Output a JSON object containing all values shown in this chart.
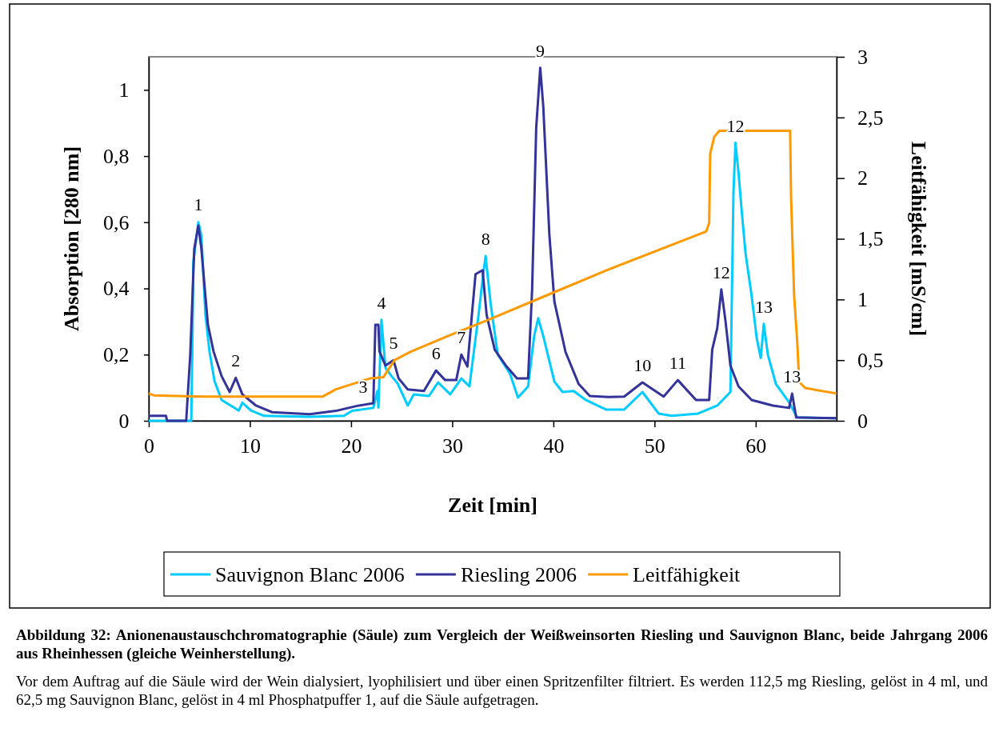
{
  "chart_data": {
    "type": "line",
    "title": "Abbildung 32: Anionenaustauschchromatographie (Säule) zum Vergleich der Weißweinsorten Riesling und Sauvignon Blanc, beide Jahrgang 2006 aus Rheinhessen (gleiche Weinherstellung).",
    "xlabel": "Zeit [min]",
    "ylabel": "Absorption [280 nm]",
    "y2label": "Leitfähigkeit [mS/cm]",
    "xlim": [
      0,
      68
    ],
    "xticks": [
      0,
      10,
      20,
      30,
      40,
      50,
      60
    ],
    "ylim": [
      0,
      1.1
    ],
    "yticks": [
      0,
      {
        "value": 0.2,
        "label": "0,2"
      },
      {
        "value": 0.4,
        "label": "0,4"
      },
      {
        "value": 0.6,
        "label": "0,6"
      },
      {
        "value": 0.8,
        "label": "0,8"
      },
      1
    ],
    "y2lim": [
      0,
      3
    ],
    "y2ticks": [
      0,
      {
        "value": 0.5,
        "label": "0,5"
      },
      1,
      {
        "value": 1.5,
        "label": "1,5"
      },
      2,
      {
        "value": 2.5,
        "label": "2,5"
      },
      3
    ],
    "legend": "bottom",
    "series": [
      {
        "name": "Sauvignon Blanc 2006",
        "color": "#00ccff",
        "x": [
          0,
          4.2,
          4.3,
          4.4,
          4.9,
          5.2,
          5.6,
          6.0,
          6.5,
          7.2,
          8.9,
          9.25,
          10.1,
          11.4,
          15.9,
          19.3,
          20.1,
          22.2,
          22.6,
          22.7,
          23.0,
          23.4,
          24.0,
          24.6,
          25.6,
          26.2,
          27.7,
          28.6,
          29.8,
          30.9,
          31.7,
          32.6,
          33.0,
          33.3,
          33.8,
          34.5,
          35.7,
          36.5,
          37.5,
          38.1,
          38.5,
          39.0,
          40.1,
          40.9,
          42.0,
          43.2,
          45.2,
          47.0,
          48.8,
          50.4,
          51.7,
          54.3,
          56.2,
          57.5,
          57.8,
          58.0,
          58.3,
          58.6,
          59.0,
          59.6,
          60.1,
          60.5,
          60.8,
          61.2,
          62.0,
          63.3,
          64.1,
          68
        ],
        "values": [
          0,
          0,
          0.2,
          0.48,
          0.6,
          0.56,
          0.32,
          0.21,
          0.12,
          0.063,
          0.031,
          0.055,
          0.031,
          0.015,
          0.012,
          0.015,
          0.03,
          0.039,
          0.09,
          0.04,
          0.305,
          0.16,
          0.135,
          0.113,
          0.046,
          0.08,
          0.075,
          0.116,
          0.08,
          0.128,
          0.104,
          0.32,
          0.426,
          0.498,
          0.353,
          0.2,
          0.143,
          0.07,
          0.104,
          0.256,
          0.31,
          0.256,
          0.118,
          0.087,
          0.09,
          0.063,
          0.034,
          0.034,
          0.087,
          0.022,
          0.015,
          0.022,
          0.046,
          0.087,
          0.69,
          0.84,
          0.75,
          0.64,
          0.505,
          0.377,
          0.25,
          0.19,
          0.293,
          0.2,
          0.111,
          0.056,
          0.01,
          0.008
        ]
      },
      {
        "name": "Riesling 2006",
        "color": "#333399",
        "x": [
          0,
          1.7,
          1.8,
          3.7,
          4.1,
          4.5,
          4.9,
          5.2,
          5.6,
          5.85,
          6.4,
          7.2,
          8.0,
          8.6,
          9.25,
          10.6,
          12.2,
          15.9,
          18.5,
          20.6,
          22.2,
          22.4,
          22.7,
          22.8,
          23.4,
          24.2,
          24.7,
          25.6,
          27.2,
          28.4,
          29.3,
          30.4,
          30.9,
          31.5,
          31.9,
          32.3,
          33.0,
          33.4,
          34.2,
          35.3,
          36.4,
          37.5,
          37.9,
          38.3,
          38.7,
          39.0,
          39.6,
          40.1,
          41.2,
          42.5,
          43.6,
          45.4,
          47.0,
          48.8,
          50.9,
          52.3,
          54.1,
          55.4,
          55.7,
          56.2,
          56.6,
          57.0,
          57.5,
          58.3,
          59.6,
          61.7,
          63.3,
          63.6,
          64.0,
          68
        ],
        "values": [
          0.015,
          0.015,
          0,
          0,
          0.2,
          0.52,
          0.59,
          0.52,
          0.377,
          0.29,
          0.21,
          0.135,
          0.087,
          0.13,
          0.08,
          0.046,
          0.026,
          0.02,
          0.03,
          0.045,
          0.053,
          0.29,
          0.29,
          0.21,
          0.167,
          0.183,
          0.128,
          0.095,
          0.09,
          0.152,
          0.123,
          0.123,
          0.2,
          0.164,
          0.305,
          0.443,
          0.455,
          0.32,
          0.215,
          0.167,
          0.128,
          0.128,
          0.4,
          0.885,
          1.067,
          0.95,
          0.563,
          0.36,
          0.208,
          0.111,
          0.075,
          0.072,
          0.073,
          0.116,
          0.073,
          0.123,
          0.063,
          0.063,
          0.215,
          0.28,
          0.397,
          0.305,
          0.167,
          0.104,
          0.063,
          0.046,
          0.039,
          0.082,
          0.01,
          0.008
        ]
      },
      {
        "name": "Leitfähigkeit",
        "color": "#ff9900",
        "axis": "y2",
        "x": [
          0,
          0.5,
          5.2,
          17.2,
          18.5,
          21.9,
          23.2,
          24.3,
          25.9,
          29.6,
          33.5,
          39.8,
          45.4,
          55.1,
          55.4,
          55.5,
          55.9,
          56.4,
          63.4,
          63.5,
          63.8,
          64.1,
          64.3,
          64.9,
          68
        ],
        "values": [
          0.225,
          0.21,
          0.2,
          0.2,
          0.26,
          0.35,
          0.36,
          0.5,
          0.57,
          0.7,
          0.83,
          1.05,
          1.245,
          1.56,
          1.63,
          2.2,
          2.34,
          2.39,
          2.39,
          1.83,
          1.03,
          0.66,
          0.32,
          0.27,
          0.225
        ]
      }
    ],
    "annotations": [
      {
        "text": "1",
        "x": 4.9,
        "y": 0.603
      },
      {
        "text": "2",
        "x": 8.6,
        "y": 0.13
      },
      {
        "text": "3",
        "x": 21.2,
        "y": 0.05
      },
      {
        "text": "4",
        "x": 23.0,
        "y": 0.305
      },
      {
        "text": "5",
        "x": 24.2,
        "y": 0.183
      },
      {
        "text": "6",
        "x": 28.4,
        "y": 0.152
      },
      {
        "text": "7",
        "x": 30.9,
        "y": 0.2
      },
      {
        "text": "8",
        "x": 33.3,
        "y": 0.498
      },
      {
        "text": "9",
        "x": 38.7,
        "y": 1.067
      },
      {
        "text": "10",
        "x": 48.8,
        "y": 0.116
      },
      {
        "text": "11",
        "x": 52.3,
        "y": 0.123
      },
      {
        "text": "12",
        "x": 56.6,
        "y": 0.397
      },
      {
        "text": "12",
        "x": 58.0,
        "y": 0.84
      },
      {
        "text": "13",
        "x": 60.8,
        "y": 0.293
      },
      {
        "text": "13",
        "x": 63.6,
        "y": 0.082
      },
      "Vor dem Auftrag auf die Säule wird der Wein dialysiert, lyophilisiert und über einen Spritzenfilter filtriert. Es werden 112,5 mg Riesling, gelöst in 4 ml, und 62,5 mg Sauvignon Blanc, gelöst in 4 ml Phosphatpuffer 1, auf die Säule aufgetragen."
    ]
  }
}
